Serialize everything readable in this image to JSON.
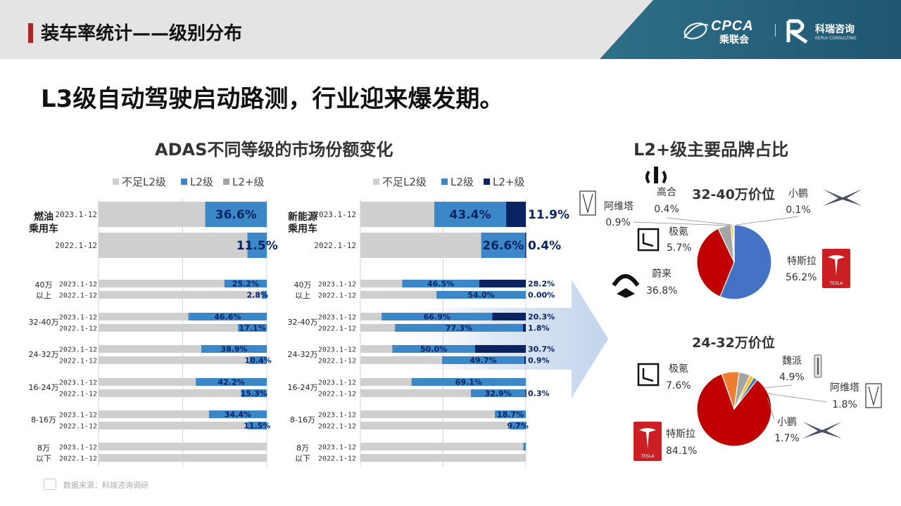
{
  "header": {
    "title": "装车率统计——级别分布",
    "logo_cpca": "CPCA",
    "logo_cpca_cn": "乘联会",
    "logo_kerui": "科瑞咨询",
    "logo_kerui_en": "KERUI CONSULTING"
  },
  "headline": "L3级自动驾驶启动路测，行业迎来爆发期。",
  "left_section_title": "ADAS不同等级的市场份额变化",
  "right_section_title": "L2+级主要品牌占比",
  "source": "数据来源：科瑞咨询调研",
  "colors": {
    "below_l2": "#cfcfcf",
    "l2": "#3b87c8",
    "l2plus": "#0b2461",
    "pie_blue": "#4472c4",
    "pie_red": "#c00000",
    "pie_gray": "#a5a5a5",
    "pie_orange": "#ed7d31",
    "pie_yellow": "#ffc000"
  },
  "chart_data": [
    {
      "type": "bar",
      "stacked": "100%",
      "panel": "fuel",
      "legend": [
        "不足L2级",
        "L2级",
        "L2+级"
      ],
      "groups": [
        {
          "label": "燃油\n乘用车",
          "rows": [
            {
              "period": "2023.1-12",
              "l2": 36.6,
              "l2plus": 0
            },
            {
              "period": "2022.1-12",
              "l2": 11.5,
              "l2plus": 0
            }
          ]
        },
        {
          "label": "40万\n以上",
          "rows": [
            {
              "period": "2023.1-12",
              "l2": 25.2,
              "l2plus": 0
            },
            {
              "period": "2022.1-12",
              "l2": 2.8,
              "l2plus": 0
            }
          ]
        },
        {
          "label": "32-40万",
          "rows": [
            {
              "period": "2023.1-12",
              "l2": 46.6,
              "l2plus": 0
            },
            {
              "period": "2022.1-12",
              "l2": 17.1,
              "l2plus": 0
            }
          ]
        },
        {
          "label": "24-32万",
          "rows": [
            {
              "period": "2023.1-12",
              "l2": 38.9,
              "l2plus": 0
            },
            {
              "period": "2022.1-12",
              "l2": 10.4,
              "l2plus": 0
            }
          ]
        },
        {
          "label": "16-24万",
          "rows": [
            {
              "period": "2023.1-12",
              "l2": 42.2,
              "l2plus": 0
            },
            {
              "period": "2022.1-12",
              "l2": 15.3,
              "l2plus": 0
            }
          ]
        },
        {
          "label": "8-16万",
          "rows": [
            {
              "period": "2023.1-12",
              "l2": 34.4,
              "l2plus": 0
            },
            {
              "period": "2022.1-12",
              "l2": 11.5,
              "l2plus": 0
            }
          ]
        },
        {
          "label": "8万\n以下",
          "rows": [
            {
              "period": "2023.1-12",
              "l2": 0,
              "l2plus": 0
            },
            {
              "period": "2022.1-12",
              "l2": 0,
              "l2plus": 0
            }
          ]
        }
      ]
    },
    {
      "type": "bar",
      "stacked": "100%",
      "panel": "nev",
      "legend": [
        "不足L2级",
        "L2级",
        "L2+级"
      ],
      "groups": [
        {
          "label": "新能源\n乘用车",
          "rows": [
            {
              "period": "2023.1-12",
              "l2": 43.4,
              "l2plus": 11.9
            },
            {
              "period": "2022.1-12",
              "l2": 26.6,
              "l2plus": 0.4
            }
          ]
        },
        {
          "label": "40万\n以上",
          "rows": [
            {
              "period": "2023.1-12",
              "l2": 46.5,
              "l2plus": 28.2
            },
            {
              "period": "2022.1-12",
              "l2": 54.0,
              "l2plus": 0.0
            }
          ]
        },
        {
          "label": "32-40万",
          "rows": [
            {
              "period": "2023.1-12",
              "l2": 66.9,
              "l2plus": 20.3
            },
            {
              "period": "2022.1-12",
              "l2": 77.3,
              "l2plus": 1.8
            }
          ]
        },
        {
          "label": "24-32万",
          "rows": [
            {
              "period": "2023.1-12",
              "l2": 50.0,
              "l2plus": 30.7
            },
            {
              "period": "2022.1-12",
              "l2": 49.7,
              "l2plus": 0.9
            }
          ]
        },
        {
          "label": "16-24万",
          "rows": [
            {
              "period": "2023.1-12",
              "l2": 69.1,
              "l2plus": 0
            },
            {
              "period": "2022.1-12",
              "l2": 32.9,
              "l2plus": 0.3
            }
          ]
        },
        {
          "label": "8-16万",
          "rows": [
            {
              "period": "2023.1-12",
              "l2": 18.7,
              "l2plus": 0
            },
            {
              "period": "2022.1-12",
              "l2": 9.7,
              "l2plus": 0
            }
          ]
        },
        {
          "label": "8万\n以下",
          "rows": [
            {
              "period": "2023.1-12",
              "l2": 1.5,
              "l2plus": 0
            },
            {
              "period": "2022.1-12",
              "l2": 0,
              "l2plus": 0
            }
          ]
        }
      ]
    },
    {
      "type": "pie",
      "title": "32-40万价位",
      "slices": [
        {
          "name": "特斯拉",
          "value": 56.2,
          "color": "#4472c4"
        },
        {
          "name": "蔚来",
          "value": 36.8,
          "color": "#c00000"
        },
        {
          "name": "极氪",
          "value": 5.7,
          "color": "#a5a5a5"
        },
        {
          "name": "阿维塔",
          "value": 0.9,
          "color": "#ffc000"
        },
        {
          "name": "高合",
          "value": 0.4,
          "color": "#5b9bd5"
        },
        {
          "name": "小鹏",
          "value": 0.1,
          "color": "#70ad47"
        }
      ]
    },
    {
      "type": "pie",
      "title": "24-32万价位",
      "slices": [
        {
          "name": "特斯拉",
          "value": 84.1,
          "color": "#c00000"
        },
        {
          "name": "极氪",
          "value": 7.6,
          "color": "#ed7d31"
        },
        {
          "name": "魏派",
          "value": 4.9,
          "color": "#a5a5a5"
        },
        {
          "name": "阿维塔",
          "value": 1.8,
          "color": "#ffc000"
        },
        {
          "name": "小鹏",
          "value": 1.7,
          "color": "#4472c4"
        }
      ]
    }
  ],
  "pie_labels": {
    "pie1": {
      "gaohe": {
        "name": "高合",
        "pct": "0.4%"
      },
      "avatr": {
        "name": "阿维塔",
        "pct": "0.9%"
      },
      "zeekr": {
        "name": "极氪",
        "pct": "5.7%"
      },
      "nio": {
        "name": "蔚来",
        "pct": "36.8%"
      },
      "xpeng": {
        "name": "小鹏",
        "pct": "0.1%"
      },
      "tesla": {
        "name": "特斯拉",
        "pct": "56.2%"
      }
    },
    "pie2": {
      "zeekr": {
        "name": "极氪",
        "pct": "7.6%"
      },
      "wey": {
        "name": "魏派",
        "pct": "4.9%"
      },
      "avatr": {
        "name": "阿维塔",
        "pct": "1.8%"
      },
      "xpeng": {
        "name": "小鹏",
        "pct": "1.7%"
      },
      "tesla": {
        "name": "特斯拉",
        "pct": "84.1%"
      }
    },
    "tesla_wordmark": "TESLA"
  }
}
